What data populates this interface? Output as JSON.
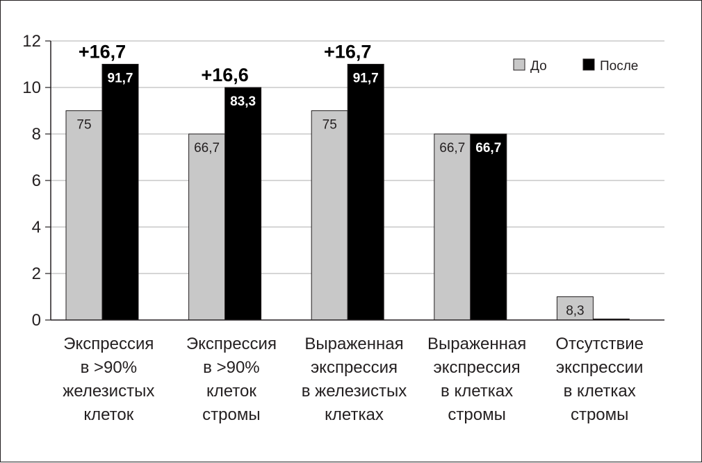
{
  "chart_data": {
    "type": "bar",
    "categories": [
      [
        "Экспрессия",
        "в >90%",
        "железистых",
        "клеток"
      ],
      [
        "Экспрессия",
        "в >90%",
        "клеток",
        "стромы"
      ],
      [
        "Выраженная",
        "экспрессия",
        "в железистых",
        "клетках"
      ],
      [
        "Выраженная",
        "экспрессия",
        "в клетках",
        "стромы"
      ],
      [
        "Отсутствие",
        "экспрессии",
        "в клетках",
        "стромы"
      ]
    ],
    "series": [
      {
        "name": "До",
        "color": "#c8c8c8",
        "values": [
          9,
          8,
          9,
          8,
          1
        ],
        "labels": [
          "75",
          "66,7",
          "75",
          "66,7",
          "8,3"
        ]
      },
      {
        "name": "После",
        "color": "#000000",
        "values": [
          11,
          10,
          11,
          8,
          0
        ],
        "labels": [
          "91,7",
          "83,3",
          "91,7",
          "66,7",
          ""
        ]
      }
    ],
    "differences": [
      "+16,7",
      "+16,6",
      "+16,7",
      "",
      ""
    ],
    "yticks": [
      "0",
      "2",
      "4",
      "6",
      "8",
      "10",
      "12"
    ],
    "ylim": [
      0,
      12
    ],
    "grid": true,
    "legend": "top-right",
    "title": "",
    "xlabel": "",
    "ylabel": ""
  }
}
